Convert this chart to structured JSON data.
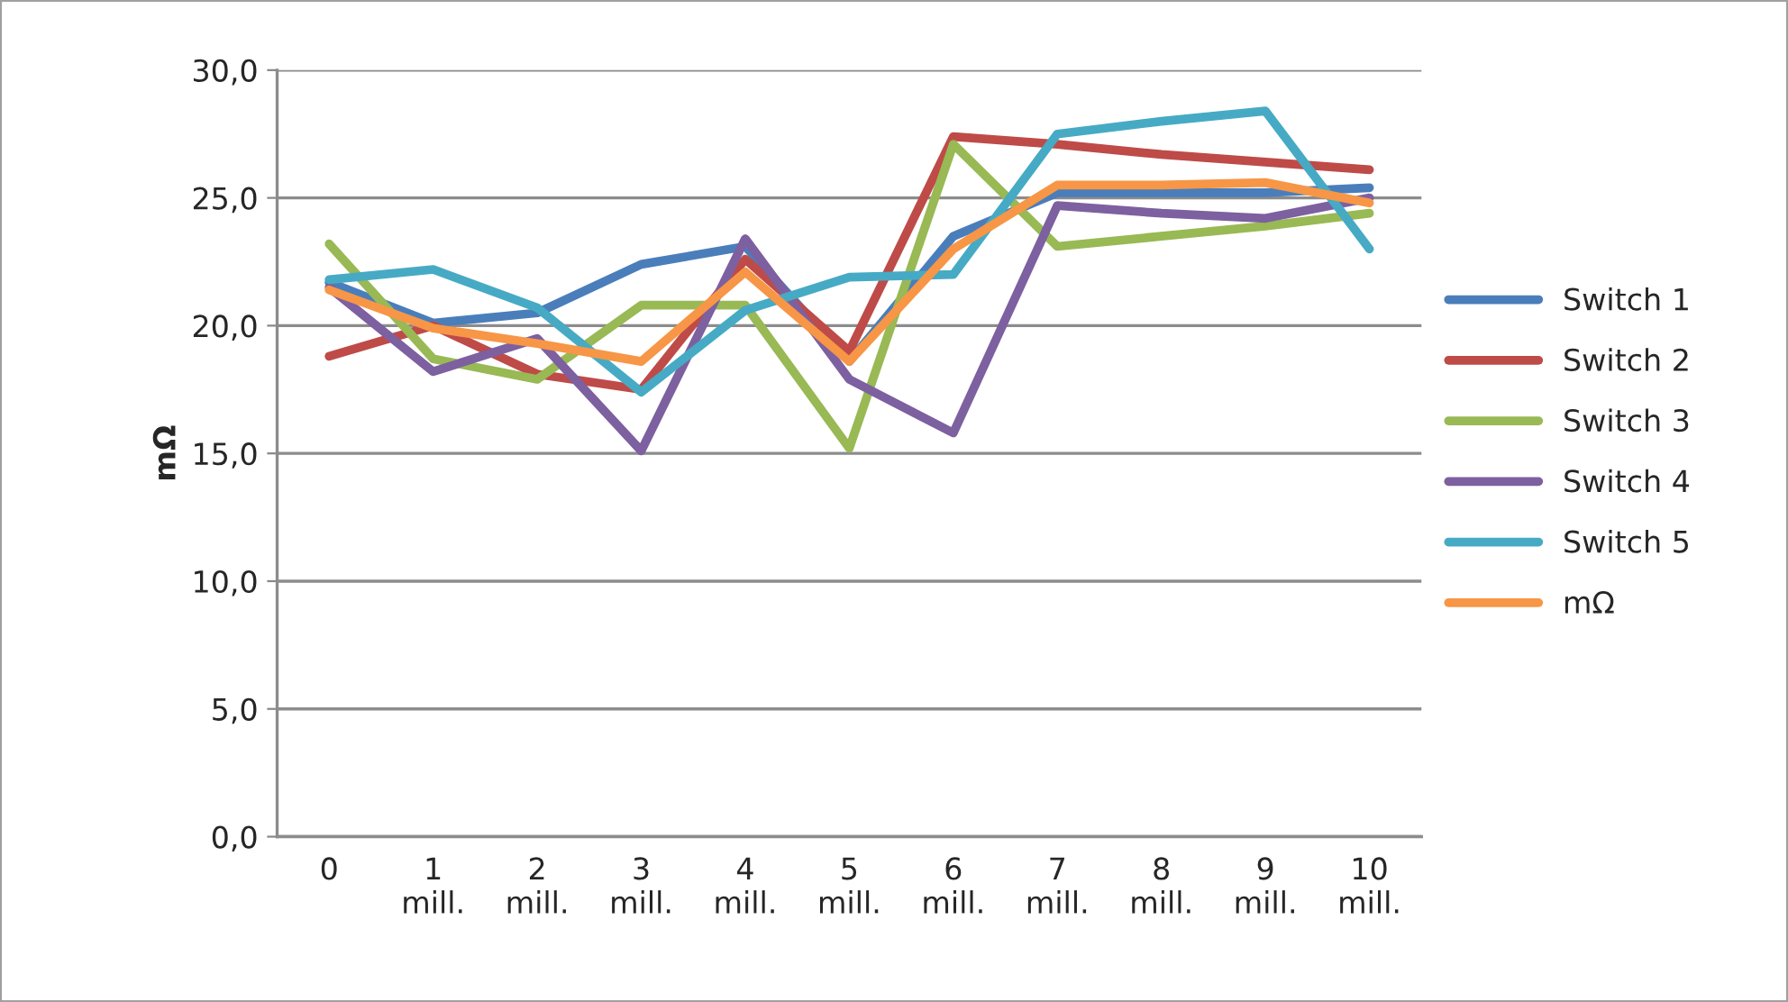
{
  "chart_data": {
    "type": "line",
    "ylabel": "mΩ",
    "categories": [
      "0",
      "1 mill.",
      "2 mill.",
      "3 mill.",
      "4 mill.",
      "5 mill.",
      "6 mill.",
      "7 mill.",
      "8 mill.",
      "9 mill.",
      "10 mill."
    ],
    "series": [
      {
        "name": "Switch 1",
        "color": "#4a7ebb",
        "values": [
          21.7,
          20.1,
          20.5,
          22.4,
          23.1,
          18.6,
          23.5,
          25.2,
          25.2,
          25.2,
          25.4
        ]
      },
      {
        "name": "Switch 2",
        "color": "#be4b48",
        "values": [
          18.8,
          20.0,
          18.1,
          17.5,
          22.6,
          19.0,
          27.4,
          27.1,
          26.7,
          26.4,
          26.1
        ]
      },
      {
        "name": "Switch 3",
        "color": "#98b954",
        "values": [
          23.2,
          18.7,
          17.9,
          20.8,
          20.8,
          15.2,
          27.1,
          23.1,
          23.5,
          23.9,
          24.4
        ]
      },
      {
        "name": "Switch 4",
        "color": "#7d60a0",
        "values": [
          21.5,
          18.2,
          19.5,
          15.1,
          23.4,
          17.9,
          15.8,
          24.7,
          24.4,
          24.2,
          25.0
        ]
      },
      {
        "name": "Switch 5",
        "color": "#46aac5",
        "values": [
          21.8,
          22.2,
          20.7,
          17.4,
          20.6,
          21.9,
          22.0,
          27.5,
          28.0,
          28.4,
          23.0
        ]
      },
      {
        "name": "mΩ",
        "color": "#f79646",
        "values": [
          21.4,
          19.9,
          19.3,
          18.6,
          22.1,
          18.6,
          23.0,
          25.5,
          25.5,
          25.6,
          24.8
        ]
      }
    ],
    "ylim": [
      0,
      30
    ],
    "yticks": [
      {
        "value": 0,
        "label": "0,0"
      },
      {
        "value": 5,
        "label": "5,0"
      },
      {
        "value": 10,
        "label": "10,0"
      },
      {
        "value": 15,
        "label": "15,0"
      },
      {
        "value": 20,
        "label": "20,0"
      },
      {
        "value": 25,
        "label": "25,0"
      },
      {
        "value": 30,
        "label": "30,0"
      }
    ],
    "grid": "y",
    "legend": "right",
    "marker": "none",
    "line_style": "solid"
  }
}
